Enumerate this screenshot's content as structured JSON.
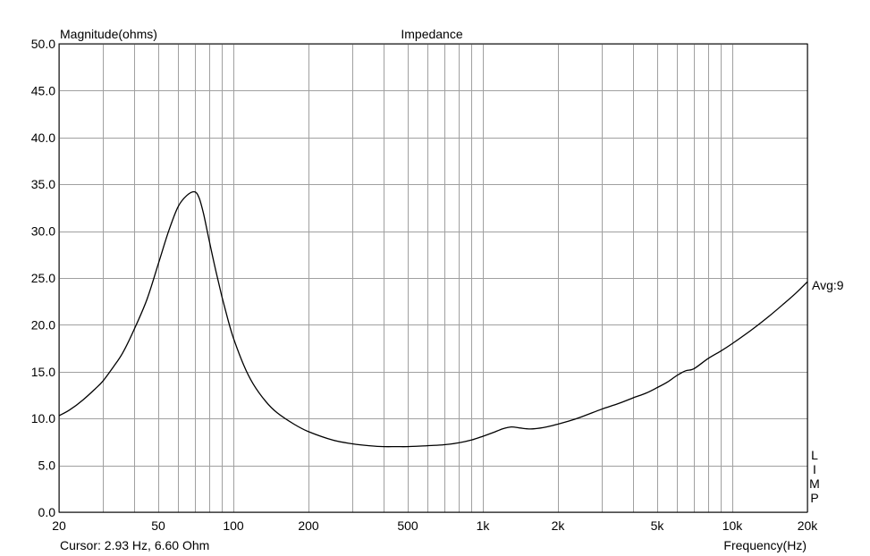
{
  "chart_data": {
    "type": "line",
    "title": "Impedance",
    "ylabel": "Magnitude(ohms)",
    "xlabel": "Frequency(Hz)",
    "x_scale": "log",
    "xlim": [
      20,
      20000
    ],
    "ylim": [
      0,
      50
    ],
    "grid": true,
    "y_ticks": [
      {
        "v": 0,
        "label": "0.0"
      },
      {
        "v": 5,
        "label": "5.0"
      },
      {
        "v": 10,
        "label": "10.0"
      },
      {
        "v": 15,
        "label": "15.0"
      },
      {
        "v": 20,
        "label": "20.0"
      },
      {
        "v": 25,
        "label": "25.0"
      },
      {
        "v": 30,
        "label": "30.0"
      },
      {
        "v": 35,
        "label": "35.0"
      },
      {
        "v": 40,
        "label": "40.0"
      },
      {
        "v": 45,
        "label": "45.0"
      },
      {
        "v": 50,
        "label": "50.0"
      }
    ],
    "x_ticks": [
      {
        "v": 20,
        "label": "20"
      },
      {
        "v": 50,
        "label": "50"
      },
      {
        "v": 100,
        "label": "100"
      },
      {
        "v": 200,
        "label": "200"
      },
      {
        "v": 500,
        "label": "500"
      },
      {
        "v": 1000,
        "label": "1k"
      },
      {
        "v": 2000,
        "label": "2k"
      },
      {
        "v": 5000,
        "label": "5k"
      },
      {
        "v": 10000,
        "label": "10k"
      },
      {
        "v": 20000,
        "label": "20k"
      }
    ],
    "x_gridlines": [
      20,
      30,
      40,
      50,
      60,
      70,
      80,
      90,
      100,
      200,
      300,
      400,
      500,
      600,
      700,
      800,
      900,
      1000,
      2000,
      3000,
      4000,
      5000,
      6000,
      7000,
      8000,
      9000,
      10000,
      20000
    ],
    "series": [
      {
        "color": "#000000",
        "x": [
          20,
          22,
          25,
          28,
          30,
          33,
          36,
          40,
          45,
          50,
          55,
          60,
          65,
          70,
          73,
          76,
          80,
          85,
          90,
          95,
          100,
          110,
          120,
          135,
          150,
          175,
          200,
          250,
          300,
          350,
          400,
          450,
          500,
          600,
          700,
          800,
          900,
          1000,
          1100,
          1200,
          1300,
          1400,
          1500,
          1600,
          1800,
          2000,
          2200,
          2500,
          3000,
          3500,
          4000,
          4500,
          5000,
          5500,
          6000,
          6500,
          7000,
          8000,
          9000,
          10000,
          12000,
          14000,
          16000,
          18000,
          20000
        ],
        "y": [
          10.3,
          10.9,
          12.0,
          13.2,
          14.0,
          15.5,
          17.0,
          19.5,
          22.7,
          26.5,
          30.0,
          32.6,
          33.8,
          34.2,
          33.5,
          31.8,
          29.0,
          25.8,
          23.0,
          20.6,
          18.6,
          15.7,
          13.7,
          11.8,
          10.6,
          9.4,
          8.6,
          7.7,
          7.3,
          7.1,
          7.0,
          7.0,
          7.0,
          7.1,
          7.2,
          7.4,
          7.7,
          8.1,
          8.5,
          8.9,
          9.1,
          9.0,
          8.9,
          8.9,
          9.1,
          9.4,
          9.7,
          10.2,
          11.0,
          11.6,
          12.2,
          12.7,
          13.3,
          13.9,
          14.6,
          15.1,
          15.3,
          16.4,
          17.2,
          18.0,
          19.5,
          20.9,
          22.2,
          23.4,
          24.6
        ]
      }
    ],
    "right_label": "Avg:9",
    "side_letters": [
      "L",
      "I",
      "M",
      "P"
    ],
    "cursor_text": "Cursor: 2.93 Hz, 6.60 Ohm"
  }
}
